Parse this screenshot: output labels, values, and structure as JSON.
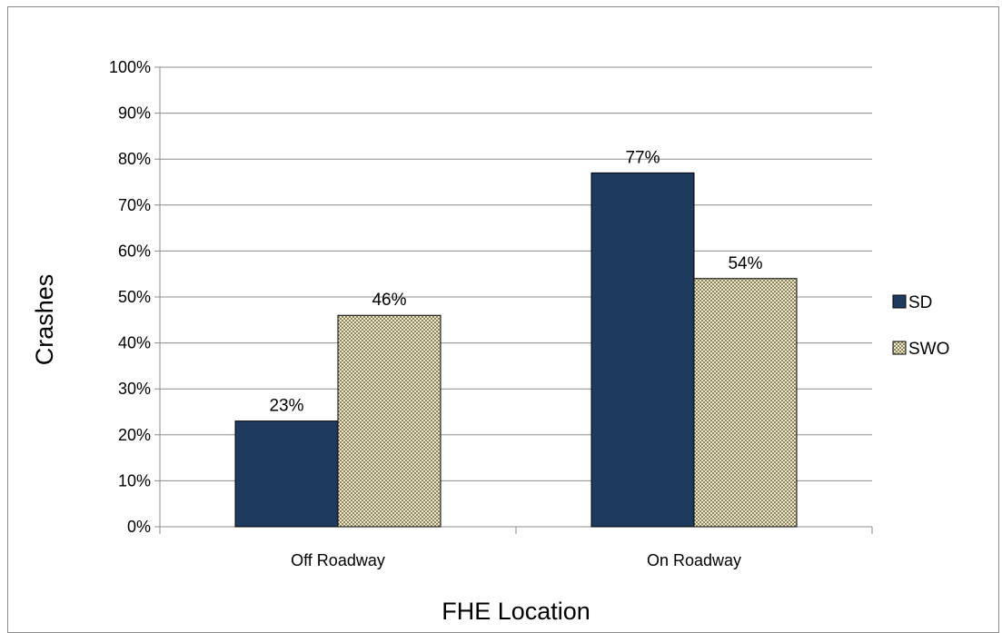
{
  "chart_data": {
    "type": "bar",
    "title": "",
    "xlabel": "FHE Location",
    "ylabel": "Crashes",
    "categories": [
      "Off Roadway",
      "On Roadway"
    ],
    "series": [
      {
        "name": "SD",
        "values": [
          23,
          77
        ],
        "labels": [
          "23%",
          "77%"
        ],
        "color": "#1f3a5f",
        "pattern": "solid"
      },
      {
        "name": "SWO",
        "values": [
          46,
          54
        ],
        "labels": [
          "46%",
          "54%"
        ],
        "color": "#d8d3a8",
        "pattern": "checkered"
      }
    ],
    "ylim": [
      0,
      100
    ],
    "yticks": [
      0,
      10,
      20,
      30,
      40,
      50,
      60,
      70,
      80,
      90,
      100
    ],
    "ytick_labels": [
      "0%",
      "10%",
      "20%",
      "30%",
      "40%",
      "50%",
      "60%",
      "70%",
      "80%",
      "90%",
      "100%"
    ],
    "grid": true,
    "legend_position": "right"
  }
}
